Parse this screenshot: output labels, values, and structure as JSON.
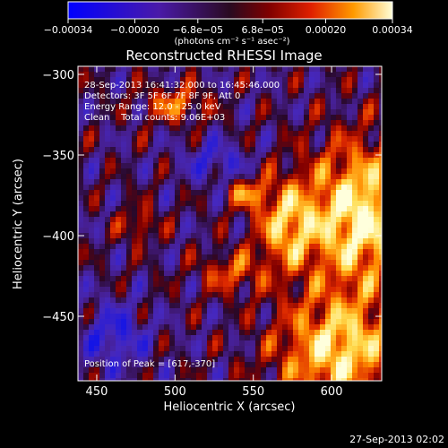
{
  "chart_data": {
    "type": "heatmap",
    "title": "Reconstructed RHESSI Image",
    "xlabel": "Heliocentric X (arcsec)",
    "ylabel": "Heliocentric Y (arcsec)",
    "xlim": [
      438,
      632
    ],
    "ylim": [
      -490,
      -295
    ],
    "x_ticks": [
      {
        "value": 450,
        "label": "450"
      },
      {
        "value": 500,
        "label": "500"
      },
      {
        "value": 550,
        "label": "550"
      },
      {
        "value": 600,
        "label": "600"
      }
    ],
    "y_ticks": [
      {
        "value": -300,
        "label": "−300"
      },
      {
        "value": -350,
        "label": "−350"
      },
      {
        "value": -400,
        "label": "−400"
      },
      {
        "value": -450,
        "label": "−450"
      }
    ],
    "colorbar": {
      "min": -0.00034,
      "max": 0.00034,
      "ticks": [
        {
          "value": -0.00034,
          "label": "−0.00034"
        },
        {
          "value": -0.0002,
          "label": "−0.00020"
        },
        {
          "value": -6.8e-05,
          "label": "−6.8e−05"
        },
        {
          "value": 6.8e-05,
          "label": "6.8e−05"
        },
        {
          "value": 0.0002,
          "label": "0.00020"
        },
        {
          "value": 0.00034,
          "label": "0.00034"
        }
      ],
      "unit_label": "(photons cm⁻² s⁻¹ asec⁻²)"
    },
    "annotations": [
      "28-Sep-2013 16:41:32.000 to 16:45:46.000",
      "Detectors: 3F 5F 6F 7F 8F 9F, Att 0",
      "Energy Range: 12.0 - 25.0 keV",
      "Clean    Total counts: 9.06E+03"
    ],
    "peak_label": "Position of Peak = [617,-370]",
    "peak": {
      "x": 617,
      "y": -370
    },
    "grid": false
  },
  "footer": {
    "timestamp": "27-Sep-2013 02:02"
  }
}
